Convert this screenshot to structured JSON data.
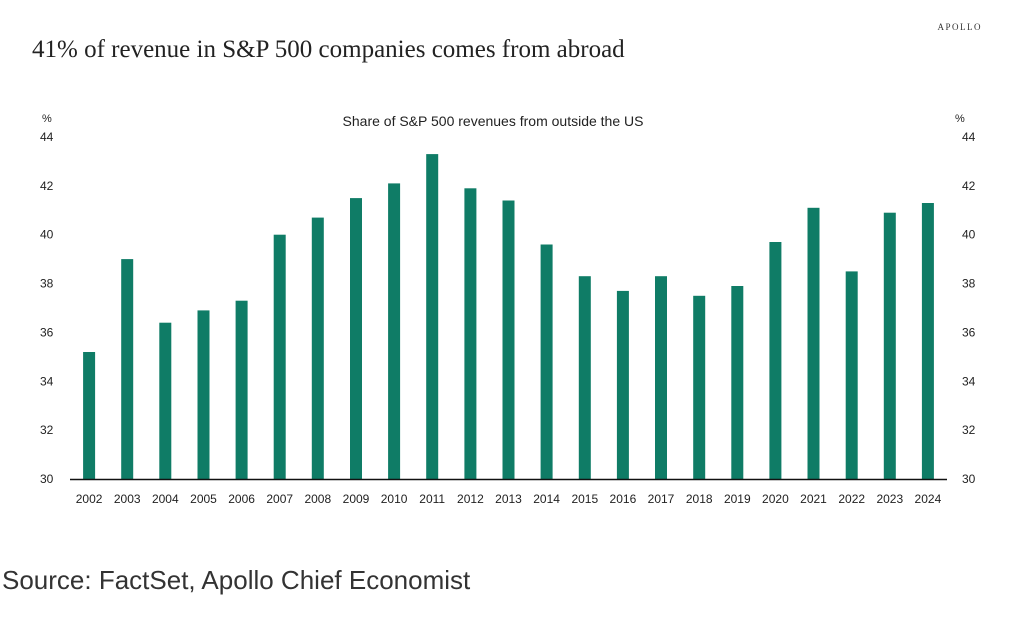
{
  "brand": "APOLLO",
  "headline": "41% of revenue in S&P 500 companies comes from abroad",
  "source": "Source: FactSet, Apollo Chief Economist",
  "colors": {
    "bar": "#0f7c66",
    "axis": "#111111"
  },
  "chart_data": {
    "type": "bar",
    "title": "Share of S&P 500 revenues from outside the US",
    "ylabel_left": "%",
    "ylabel_right": "%",
    "ylim": [
      30,
      44
    ],
    "yticks": [
      30,
      32,
      34,
      36,
      38,
      40,
      42,
      44
    ],
    "grid": false,
    "categories": [
      "2002",
      "2003",
      "2004",
      "2005",
      "2006",
      "2007",
      "2008",
      "2009",
      "2010",
      "2011",
      "2012",
      "2013",
      "2014",
      "2015",
      "2016",
      "2017",
      "2018",
      "2019",
      "2020",
      "2021",
      "2022",
      "2023",
      "2024"
    ],
    "values": [
      35.2,
      39.0,
      36.4,
      36.9,
      37.3,
      40.0,
      40.7,
      41.5,
      42.1,
      43.3,
      41.9,
      41.4,
      39.6,
      38.3,
      37.7,
      38.3,
      37.5,
      37.9,
      39.7,
      41.1,
      38.5,
      40.9,
      41.3
    ]
  }
}
